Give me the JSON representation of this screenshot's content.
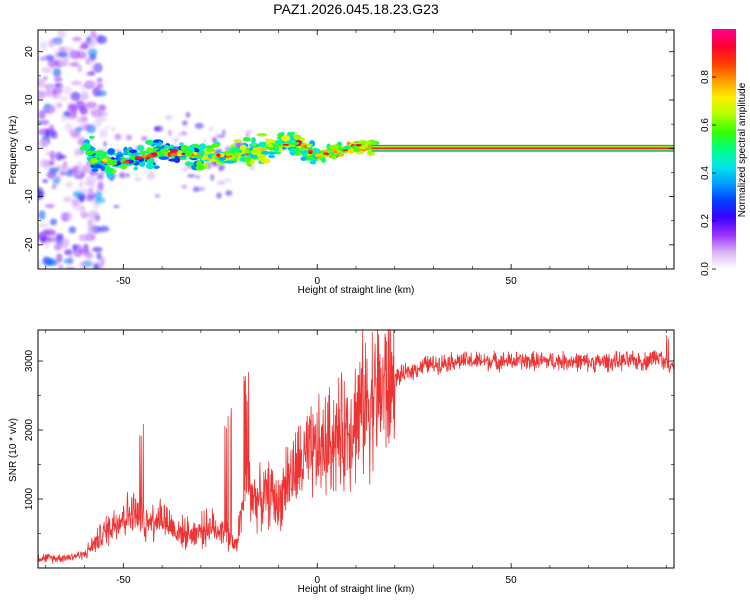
{
  "figure_title": "PAZ1.2026.045.18.23.G23",
  "chart_data": [
    {
      "type": "heatmap",
      "xlabel": "Height of straight line (km)",
      "ylabel": "Frequency (Hz)",
      "xlim": [
        -72,
        92
      ],
      "ylim": [
        -25,
        24.5
      ],
      "xticks": [
        -50,
        0,
        50
      ],
      "yticks": [
        -20,
        -10,
        0,
        10,
        20
      ],
      "colorbar": {
        "label": "Normalized spectral amplitude",
        "range": [
          0,
          1
        ],
        "ticks": [
          0.0,
          0.2,
          0.4,
          0.6,
          0.8
        ],
        "colors": [
          "#ffffff",
          "#d9b3f7",
          "#9b30ff",
          "#3d00ff",
          "#0040ff",
          "#00a0ff",
          "#00e8e8",
          "#00ff80",
          "#33ff00",
          "#b0ff00",
          "#ffee00",
          "#ff9a00",
          "#ff3a00",
          "#ff0030",
          "#ff0090"
        ]
      },
      "ridge": [
        {
          "x": -58,
          "y": -2.5
        },
        {
          "x": -52,
          "y": -3
        },
        {
          "x": -46,
          "y": -2
        },
        {
          "x": -40,
          "y": -1
        },
        {
          "x": -34,
          "y": -1
        },
        {
          "x": -28,
          "y": -2
        },
        {
          "x": -22,
          "y": -1.5
        },
        {
          "x": -16,
          "y": -0.5
        },
        {
          "x": -10,
          "y": 1
        },
        {
          "x": -5,
          "y": 1
        },
        {
          "x": 0,
          "y": -1.5
        },
        {
          "x": 5,
          "y": -0.5
        },
        {
          "x": 10,
          "y": 0.5
        },
        {
          "x": 15,
          "y": 0
        },
        {
          "x": 92,
          "y": 0
        }
      ],
      "steady_band": {
        "x_start": 14,
        "x_end": 92,
        "y": 0,
        "amplitude": 0.9
      }
    },
    {
      "type": "line",
      "xlabel": "Height of straight line (km)",
      "ylabel": "SNR (10 * v/v)",
      "xlim": [
        -72,
        92
      ],
      "ylim": [
        0,
        3450
      ],
      "xticks": [
        -50,
        0,
        50
      ],
      "yticks": [
        1000,
        2000,
        3000
      ],
      "color": "#ee3333",
      "series": [
        {
          "x": [
            -72,
            -68,
            -64,
            -60,
            -56,
            -52,
            -48,
            -44,
            -40,
            -36,
            -32,
            -28,
            -24,
            -21,
            -20,
            -18,
            -16,
            -14,
            -12,
            -10,
            -8,
            -6,
            -4,
            -2,
            0,
            2,
            4,
            6,
            8,
            10,
            12,
            14,
            16,
            18,
            20,
            22,
            24,
            26,
            28,
            30,
            35,
            40,
            45,
            50,
            55,
            60,
            65,
            70,
            75,
            80,
            85,
            88,
            90,
            92
          ],
          "y": [
            150,
            140,
            160,
            200,
            450,
            680,
            800,
            700,
            750,
            520,
            500,
            600,
            550,
            300,
            650,
            1200,
            1000,
            1000,
            1100,
            900,
            1300,
            1350,
            1550,
            1600,
            1700,
            1750,
            1900,
            1900,
            2050,
            2200,
            2350,
            2500,
            2550,
            2650,
            2750,
            2800,
            2850,
            2900,
            2950,
            2950,
            3000,
            3000,
            3000,
            3000,
            3000,
            3000,
            3000,
            2980,
            2990,
            3000,
            3000,
            3100,
            2950,
            2950
          ]
        }
      ]
    }
  ]
}
